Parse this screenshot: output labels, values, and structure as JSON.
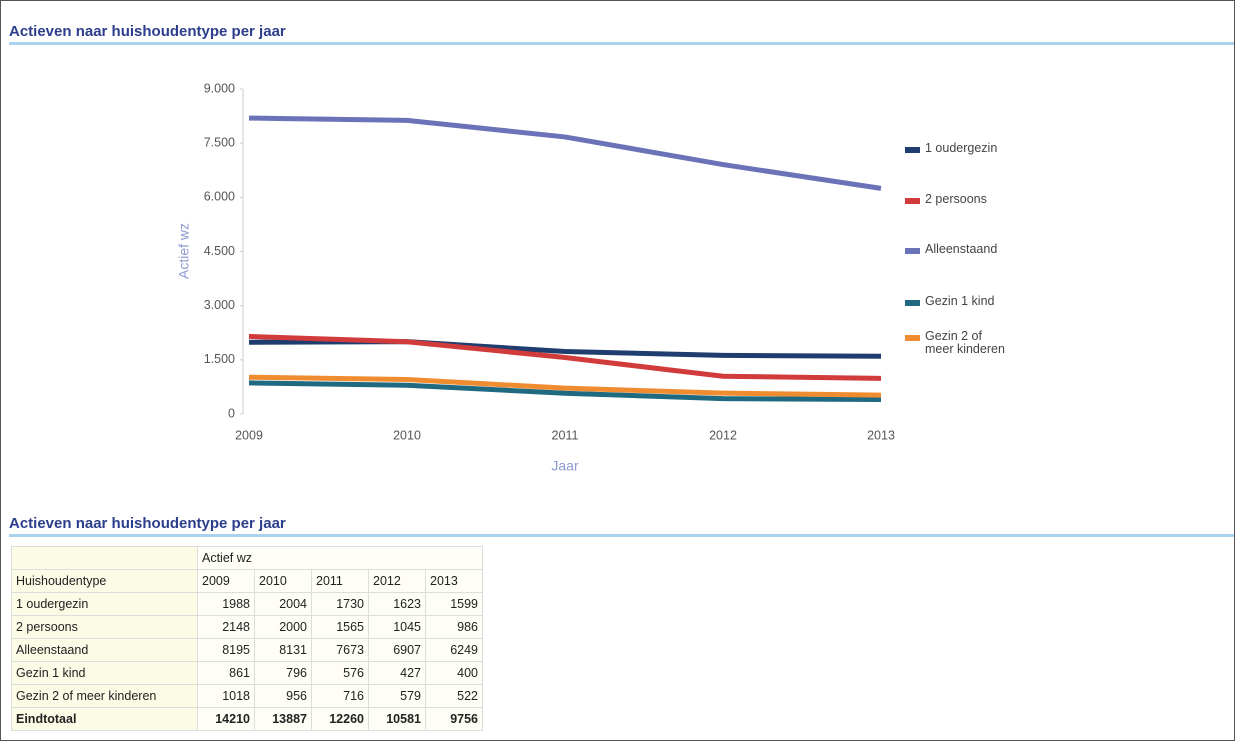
{
  "chart_data": {
    "type": "line",
    "title": "Actieven naar huishoudentype per jaar",
    "x_label": "Jaar",
    "y_label": "Actief wz",
    "x": [
      2009,
      2010,
      2011,
      2012,
      2013
    ],
    "xlim": [
      2009,
      2013
    ],
    "xticks": [
      2009,
      2010,
      2011,
      2012,
      2013
    ],
    "ylim": [
      0,
      9000
    ],
    "yticks": [
      0,
      {
        "value": 1500,
        "label": "1.500"
      },
      {
        "value": 3000,
        "label": "3.000"
      },
      {
        "value": 4500,
        "label": "4.500"
      },
      {
        "value": 6000,
        "label": "6.000"
      },
      {
        "value": 7500,
        "label": "7.500"
      },
      {
        "value": 9000,
        "label": "9.000"
      }
    ],
    "legend": "right",
    "series": [
      {
        "name": "1 oudergezin",
        "color": "#1f3d6e",
        "values": [
          1988,
          2004,
          1730,
          1623,
          1599
        ]
      },
      {
        "name": "2 persoons",
        "color": "#d23b3b",
        "values": [
          2148,
          2000,
          1565,
          1045,
          986
        ]
      },
      {
        "name": "Alleenstaand",
        "color": "#6b73b8",
        "values": [
          8195,
          8131,
          7673,
          6907,
          6249
        ]
      },
      {
        "name": "Gezin 1 kind",
        "color": "#1f6a80",
        "values": [
          861,
          796,
          576,
          427,
          400
        ]
      },
      {
        "name": "Gezin 2 of meer kinderen",
        "color": "#f08c30",
        "values": [
          1018,
          956,
          716,
          579,
          522
        ]
      }
    ]
  },
  "table": {
    "title": "Actieven naar huishoudentype per jaar",
    "group_header": "Actief wz",
    "columns": [
      "Huishoudentype",
      2009,
      2010,
      2011,
      2012,
      2013
    ],
    "rows": [
      [
        "1 oudergezin",
        1988,
        2004,
        1730,
        1623,
        1599
      ],
      [
        "2 persoons",
        2148,
        2000,
        1565,
        1045,
        986
      ],
      [
        "Alleenstaand",
        8195,
        8131,
        7673,
        6907,
        6249
      ],
      [
        "Gezin 1 kind",
        861,
        796,
        576,
        427,
        400
      ],
      [
        "Gezin 2 of meer kinderen",
        1018,
        956,
        716,
        579,
        522
      ]
    ],
    "total": [
      "Eindtotaal",
      14210,
      13887,
      12260,
      10581,
      9756
    ]
  }
}
